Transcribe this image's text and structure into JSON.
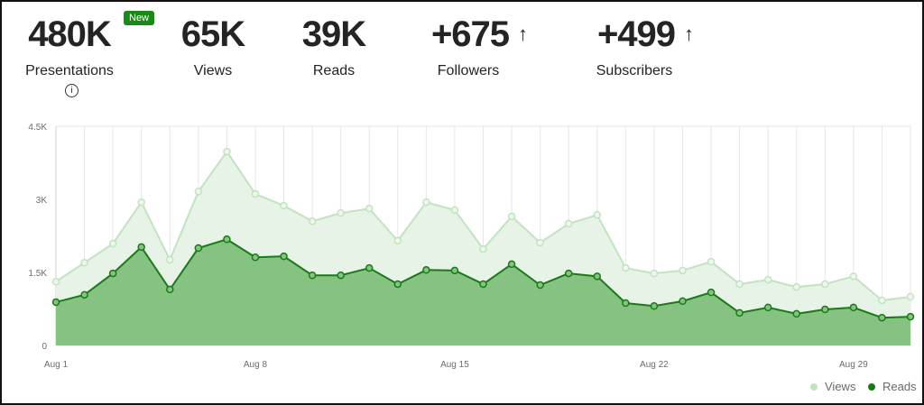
{
  "stats": [
    {
      "value": "480K",
      "label": "Presentations",
      "badge": "New",
      "info_icon": "i"
    },
    {
      "value": "65K",
      "label": "Views"
    },
    {
      "value": "39K",
      "label": "Reads"
    },
    {
      "value": "+675",
      "label": "Followers",
      "arrow": "↑"
    },
    {
      "value": "+499",
      "label": "Subscribers",
      "arrow": "↑"
    }
  ],
  "colors": {
    "views_fill": "#e6f3e6",
    "views_line": "#c2e3bf",
    "reads_fill": "#86c282",
    "reads_line": "#1a7a17",
    "badge": "#1a8917"
  },
  "chart_data": {
    "type": "area",
    "x": [
      "Aug 1",
      "Aug 2",
      "Aug 3",
      "Aug 4",
      "Aug 5",
      "Aug 6",
      "Aug 7",
      "Aug 8",
      "Aug 9",
      "Aug 10",
      "Aug 11",
      "Aug 12",
      "Aug 13",
      "Aug 14",
      "Aug 15",
      "Aug 16",
      "Aug 17",
      "Aug 18",
      "Aug 19",
      "Aug 20",
      "Aug 21",
      "Aug 22",
      "Aug 23",
      "Aug 24",
      "Aug 25",
      "Aug 26",
      "Aug 27",
      "Aug 28",
      "Aug 29",
      "Aug 30",
      "Aug 31"
    ],
    "series": [
      {
        "name": "Views",
        "values": [
          1310,
          1700,
          2090,
          2940,
          1760,
          3160,
          3980,
          3110,
          2870,
          2550,
          2720,
          2810,
          2150,
          2940,
          2780,
          1980,
          2650,
          2110,
          2500,
          2680,
          1590,
          1480,
          1540,
          1720,
          1260,
          1350,
          1200,
          1260,
          1420,
          925,
          1000
        ]
      },
      {
        "name": "Reads",
        "values": [
          890,
          1040,
          1480,
          2020,
          1150,
          2000,
          2180,
          1810,
          1830,
          1440,
          1440,
          1590,
          1260,
          1550,
          1540,
          1260,
          1670,
          1240,
          1480,
          1420,
          870,
          810,
          910,
          1090,
          670,
          780,
          650,
          740,
          780,
          570,
          590
        ]
      }
    ],
    "ylim": [
      0,
      4500
    ],
    "yticks": [
      {
        "v": 0,
        "label": "0"
      },
      {
        "v": 1500,
        "label": "1.5K"
      },
      {
        "v": 3000,
        "label": "3K"
      },
      {
        "v": 4500,
        "label": "4.5K"
      }
    ],
    "xticks": [
      {
        "i": 0,
        "label": "Aug 1"
      },
      {
        "i": 7,
        "label": "Aug 8"
      },
      {
        "i": 14,
        "label": "Aug 15"
      },
      {
        "i": 21,
        "label": "Aug 22"
      },
      {
        "i": 28,
        "label": "Aug 29"
      }
    ],
    "grid": true,
    "legend": {
      "position": "bottom-right",
      "entries": [
        "Views",
        "Reads"
      ]
    }
  }
}
